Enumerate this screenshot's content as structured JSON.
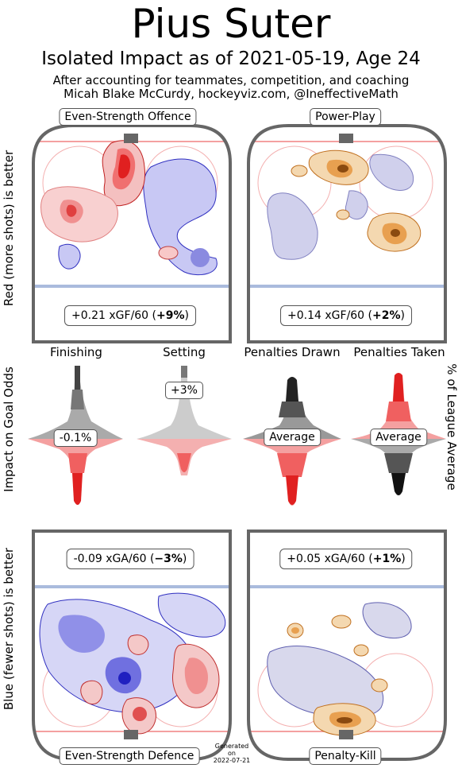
{
  "header": {
    "title": "Pius Suter",
    "subtitle": "Isolated Impact as of 2021-05-19, Age 24",
    "line2": "After accounting for teammates, competition, and coaching",
    "line3": "Micah Blake McCurdy, hockeyviz.com, @IneffectiveMath"
  },
  "axis_labels": {
    "left_top": "Red (more shots) is better",
    "left_mid": "Impact on Goal Odds",
    "left_bottom": "Blue (fewer shots) is better",
    "right_mid": "% of League Average"
  },
  "panels": {
    "ev_offence": {
      "label": "Even-Strength Offence",
      "stat_num": "+0.21 xGF/60 (",
      "stat_bold": "+9%",
      "stat_end": ")"
    },
    "power_play": {
      "label": "Power-Play",
      "stat_num": "+0.14 xGF/60 (",
      "stat_bold": "+2%",
      "stat_end": ")"
    },
    "ev_defence": {
      "label": "Even-Strength Defence",
      "stat_num": "-0.09 xGA/60 (",
      "stat_bold": "−3%",
      "stat_end": ")"
    },
    "penalty_kill": {
      "label": "Penalty-Kill",
      "stat_num": "+0.05 xGA/60 (",
      "stat_bold": "+1%",
      "stat_end": ")"
    }
  },
  "generated": {
    "l1": "Generated",
    "l2": "on",
    "l3": "2022-07-21"
  },
  "colors": {
    "red": "#ff2a2a",
    "blue": "#2a2aff",
    "orange": "#e8a050",
    "rink_line": "#666666"
  },
  "chart_data": [
    {
      "type": "heatmap",
      "title": "Even-Strength Offence",
      "value_label": "+0.21 xGF/60 (+9%)",
      "xGF_per_60": 0.21,
      "pct_vs_league": 9
    },
    {
      "type": "heatmap",
      "title": "Power-Play",
      "value_label": "+0.14 xGF/60 (+2%)",
      "xGF_per_60": 0.14,
      "pct_vs_league": 2
    },
    {
      "type": "heatmap",
      "title": "Even-Strength Defence",
      "value_label": "-0.09 xGA/60 (−3%)",
      "xGA_per_60": -0.09,
      "pct_vs_league": -3
    },
    {
      "type": "heatmap",
      "title": "Penalty-Kill",
      "value_label": "+0.05 xGA/60 (+1%)",
      "xGA_per_60": 0.05,
      "pct_vs_league": 1
    },
    {
      "type": "area",
      "title": "Impact on Goal Odds / % of League Average",
      "categories": [
        "Finishing",
        "Setting",
        "Penalties Drawn",
        "Penalties Taken"
      ],
      "value_labels": [
        "-0.1%",
        "+3%",
        "Average",
        "Average"
      ]
    }
  ]
}
